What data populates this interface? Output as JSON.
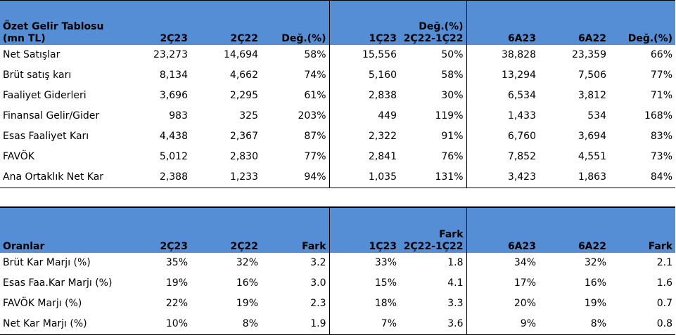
{
  "income": {
    "title_line1": "Özet Gelir Tablosu",
    "title_line2": "(mn TL)",
    "headers": [
      "2Ç23",
      "2Ç22",
      "Değ.(%)",
      "1Ç23",
      "Değ.(%)\n2Ç22-1Ç22",
      "6A23",
      "6A22",
      "Değ.(%)"
    ],
    "rows": [
      {
        "label": "Net Satışlar",
        "values": [
          "23,273",
          "14,694",
          "58%",
          "15,556",
          "50%",
          "38,828",
          "23,359",
          "66%"
        ]
      },
      {
        "label": "Brüt satış karı",
        "values": [
          "8,134",
          "4,662",
          "74%",
          "5,160",
          "58%",
          "13,294",
          "7,506",
          "77%"
        ]
      },
      {
        "label": "Faaliyet Giderleri",
        "values": [
          "3,696",
          "2,295",
          "61%",
          "2,838",
          "30%",
          "6,534",
          "3,812",
          "71%"
        ]
      },
      {
        "label": "Finansal Gelir/Gider",
        "values": [
          "983",
          "325",
          "203%",
          "449",
          "119%",
          "1,433",
          "534",
          "168%"
        ]
      },
      {
        "label": "Esas Faaliyet Karı",
        "values": [
          "4,438",
          "2,367",
          "87%",
          "2,322",
          "91%",
          "6,760",
          "3,694",
          "83%"
        ]
      },
      {
        "label": "FAVÖK",
        "values": [
          "5,012",
          "2,830",
          "77%",
          "2,841",
          "76%",
          "7,852",
          "4,551",
          "73%"
        ]
      },
      {
        "label": "Ana Ortaklık Net Kar",
        "values": [
          "2,388",
          "1,233",
          "94%",
          "1,035",
          "131%",
          "3,423",
          "1,863",
          "84%"
        ]
      }
    ]
  },
  "ratios": {
    "title": "Oranlar",
    "headers": [
      "2Ç23",
      "2Ç22",
      "Fark",
      "1Ç23",
      "Fark\n2Ç22-1Ç22",
      "6A23",
      "6A22",
      "Fark"
    ],
    "rows": [
      {
        "label": "Brüt Kar Marjı (%)",
        "values": [
          "35%",
          "32%",
          "3.2",
          "33%",
          "1.8",
          "34%",
          "32%",
          "2.1"
        ]
      },
      {
        "label": "Esas Faa.Kar Marjı (%)",
        "values": [
          "19%",
          "16%",
          "3.0",
          "15%",
          "4.1",
          "17%",
          "16%",
          "1.6"
        ]
      },
      {
        "label": "FAVÖK Marjı (%)",
        "values": [
          "22%",
          "19%",
          "2.3",
          "18%",
          "3.3",
          "20%",
          "19%",
          "0.7"
        ]
      },
      {
        "label": "Net Kar Marjı (%)",
        "values": [
          "10%",
          "8%",
          "1.9",
          "7%",
          "3.6",
          "9%",
          "8%",
          "0.8"
        ]
      }
    ]
  },
  "colors": {
    "header_bg": "#558ed5",
    "grid": "#000000"
  }
}
